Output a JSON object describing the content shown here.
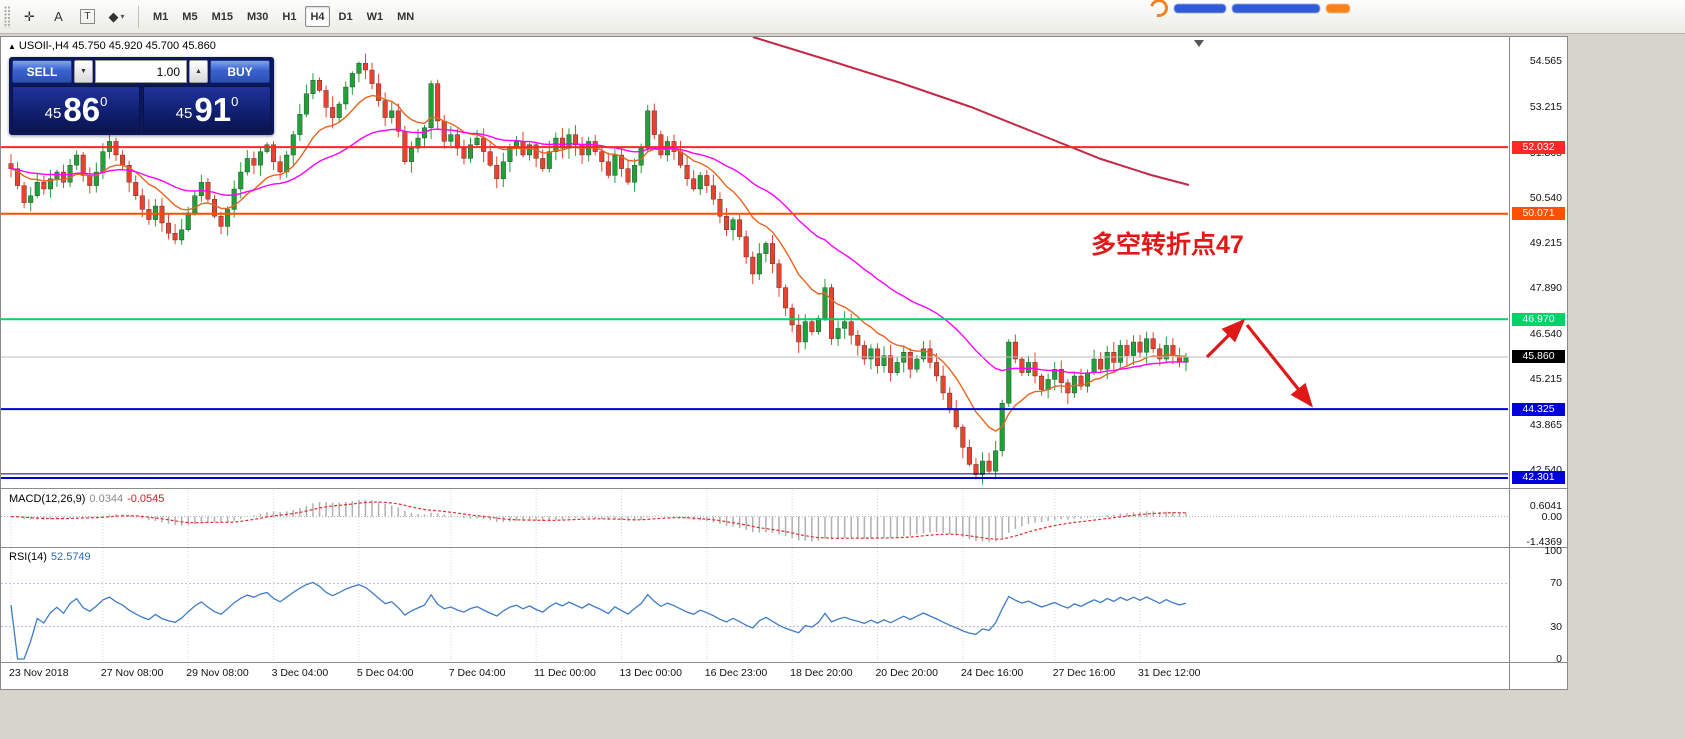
{
  "toolbar": {
    "tools": [
      {
        "name": "crosshair",
        "glyph": "✛"
      },
      {
        "name": "text-label",
        "glyph": "A"
      },
      {
        "name": "text-box",
        "glyph": "T",
        "boxed": true
      },
      {
        "name": "shapes",
        "glyph": "◆",
        "caret": "▾"
      }
    ],
    "timeframes": [
      {
        "label": "M1"
      },
      {
        "label": "M5"
      },
      {
        "label": "M15"
      },
      {
        "label": "M30"
      },
      {
        "label": "H1"
      },
      {
        "label": "H4",
        "active": true
      },
      {
        "label": "D1"
      },
      {
        "label": "W1"
      },
      {
        "label": "MN"
      }
    ],
    "logo_colors": {
      "orange": "#f5821f",
      "blue": "#2f5bd7"
    }
  },
  "window": {
    "title": {
      "marker": "▲",
      "text": "USOIl-,H4 45.750 45.920 45.700 45.860"
    },
    "trade_panel": {
      "sell_label": "SELL",
      "buy_label": "BUY",
      "volume": "1.00",
      "spin_down_glyph": "▼",
      "spin_up_glyph": "▲",
      "sell_price": {
        "prefix": "45",
        "big": "86",
        "sup": "0"
      },
      "buy_price": {
        "prefix": "45",
        "big": "91",
        "sup": "0"
      }
    },
    "annotation": "多空转折点47"
  },
  "macd": {
    "name": "MACD(12,26,9)",
    "value": "0.0344",
    "signal": "-0.0545",
    "ticks": [
      {
        "v": 0.6041,
        "t": "0.6041"
      },
      {
        "v": 0,
        "t": "0.00"
      },
      {
        "v": -1.4369,
        "t": "-1.4369"
      }
    ]
  },
  "rsi": {
    "name": "RSI(14)",
    "value": "52.5749",
    "ticks": [
      100,
      70,
      30,
      0
    ],
    "levels": [
      70,
      30
    ]
  },
  "chart_data": {
    "type": "candlestick",
    "symbol": "USOIl-",
    "timeframe": "H4",
    "ohlc_display": {
      "open": 45.75,
      "high": 45.92,
      "low": 45.7,
      "close": 45.86
    },
    "ylim": [
      42.0,
      55.0
    ],
    "y_ticks": [
      54.565,
      53.215,
      51.865,
      50.54,
      49.215,
      47.89,
      46.54,
      45.215,
      43.865,
      42.54
    ],
    "closes": [
      51.4,
      50.9,
      50.4,
      50.6,
      51.0,
      50.8,
      51.1,
      51.3,
      51.0,
      51.5,
      51.8,
      51.2,
      50.9,
      51.3,
      51.9,
      52.2,
      51.8,
      51.5,
      51.0,
      50.6,
      50.2,
      49.9,
      50.3,
      49.8,
      49.5,
      49.3,
      49.6,
      50.1,
      50.6,
      51.0,
      50.5,
      50.0,
      49.7,
      50.2,
      50.8,
      51.3,
      51.7,
      51.5,
      51.9,
      52.1,
      51.6,
      51.3,
      51.8,
      52.4,
      53.0,
      53.6,
      54.0,
      53.7,
      53.2,
      52.9,
      53.3,
      53.8,
      54.2,
      54.5,
      54.3,
      53.9,
      53.4,
      52.9,
      53.1,
      52.5,
      51.6,
      52.0,
      52.3,
      52.6,
      53.9,
      52.8,
      52.2,
      52.4,
      52.0,
      51.7,
      52.1,
      52.3,
      51.9,
      51.5,
      51.1,
      51.6,
      52.0,
      52.2,
      51.8,
      52.1,
      51.7,
      51.4,
      51.9,
      52.3,
      52.0,
      52.4,
      52.1,
      51.8,
      52.2,
      51.9,
      51.6,
      51.2,
      51.8,
      51.4,
      51.0,
      51.5,
      52.0,
      53.1,
      52.4,
      51.8,
      52.2,
      51.9,
      51.5,
      51.1,
      50.8,
      51.2,
      50.9,
      50.5,
      50.0,
      49.6,
      49.9,
      49.4,
      48.8,
      48.3,
      48.9,
      49.2,
      48.6,
      47.9,
      47.3,
      46.8,
      46.3,
      46.9,
      46.6,
      47.0,
      47.9,
      46.4,
      46.7,
      46.9,
      46.5,
      46.2,
      45.8,
      46.1,
      45.6,
      45.9,
      45.4,
      45.7,
      46.0,
      45.5,
      45.8,
      46.1,
      45.7,
      45.3,
      44.8,
      44.3,
      43.8,
      43.2,
      42.7,
      42.4,
      42.8,
      42.5,
      43.1,
      44.5,
      46.3,
      45.8,
      45.4,
      45.7,
      45.3,
      44.9,
      45.2,
      45.5,
      45.1,
      44.8,
      45.3,
      45.0,
      45.4,
      45.8,
      45.5,
      46.0,
      45.7,
      46.2,
      45.9,
      46.3,
      46.0,
      46.4,
      46.1,
      45.8,
      46.2,
      45.9,
      45.7,
      45.86
    ],
    "time_labels": [
      {
        "text": "23 Nov 2018",
        "i": 0
      },
      {
        "text": "27 Nov 08:00",
        "i": 14
      },
      {
        "text": "29 Nov 08:00",
        "i": 27
      },
      {
        "text": "3 Dec 04:00",
        "i": 40
      },
      {
        "text": "5 Dec 04:00",
        "i": 53
      },
      {
        "text": "7 Dec 04:00",
        "i": 67
      },
      {
        "text": "11 Dec 00:00",
        "i": 80
      },
      {
        "text": "13 Dec 00:00",
        "i": 93
      },
      {
        "text": "16 Dec 23:00",
        "i": 106
      },
      {
        "text": "18 Dec 20:00",
        "i": 119
      },
      {
        "text": "20 Dec 20:00",
        "i": 132
      },
      {
        "text": "24 Dec 16:00",
        "i": 145
      },
      {
        "text": "27 Dec 16:00",
        "i": 159
      },
      {
        "text": "31 Dec 12:00",
        "i": 172
      }
    ],
    "hlines": [
      {
        "price": 52.032,
        "color": "#ff2828",
        "width": 2,
        "label": "52.032",
        "label_bg": "#ff2828"
      },
      {
        "price": 50.071,
        "color": "#ff4f00",
        "width": 2,
        "label": "50.071",
        "label_bg": "#ff4f00"
      },
      {
        "price": 46.97,
        "color": "#00d26a",
        "width": 2,
        "label": "46.970",
        "label_bg": "#00d26a"
      },
      {
        "price": 45.86,
        "color": "#bdbdbd",
        "width": 1,
        "label": "45.860",
        "label_bg": "#000000"
      },
      {
        "price": 44.325,
        "color": "#0000dd",
        "width": 2,
        "label": "44.325",
        "label_bg": "#0000dd"
      },
      {
        "price": 42.42,
        "color": "#00008b",
        "width": 1,
        "label": null
      },
      {
        "price": 42.301,
        "color": "#0000dd",
        "width": 2,
        "label": "42.301",
        "label_bg": "#0000dd"
      }
    ],
    "ma": {
      "fast_period": 12,
      "fast_color": "#e8641e",
      "slow_period": 34,
      "slow_color": "#ff00ff"
    },
    "trend_line": {
      "color": "#c42846",
      "points": [
        [
          752,
          0
        ],
        [
          830,
          24
        ],
        [
          900,
          46
        ],
        [
          970,
          70
        ],
        [
          1040,
          98
        ],
        [
          1100,
          122
        ],
        [
          1150,
          138
        ],
        [
          1188,
          148
        ]
      ]
    },
    "arrows": {
      "color": "#e01818",
      "segments": [
        [
          1206,
          320,
          1242,
          284
        ],
        [
          1246,
          288,
          1310,
          368
        ]
      ],
      "annotation_xy": [
        1090,
        216
      ]
    },
    "candle_up": "#21a038",
    "candle_down": "#e8422e",
    "macd_hist_color": "#b0b0b0",
    "macd_signal_color": "#e03030",
    "rsi_color": "#3e7bc8"
  }
}
